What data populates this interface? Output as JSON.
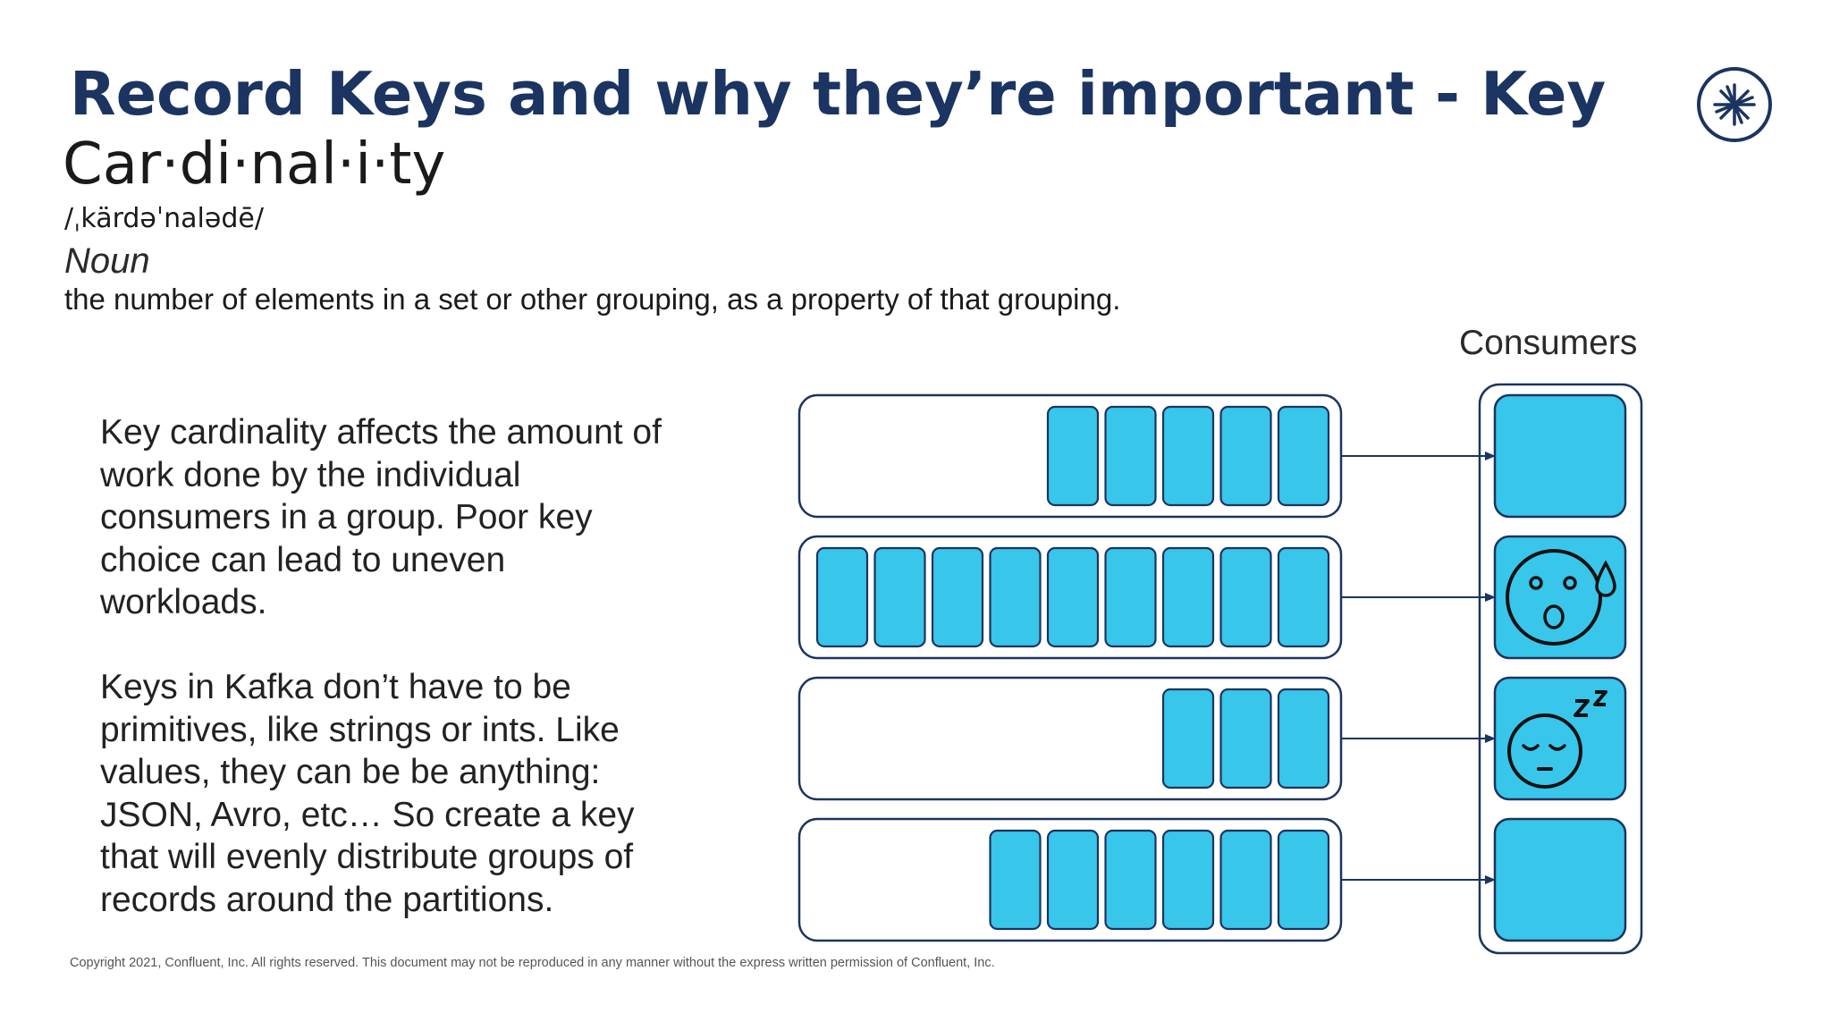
{
  "slide": {
    "title": "Record Keys and why they’re important - Key",
    "term": "Car·di·nal·i·ty",
    "pronunciation": "/ˌkärdəˈnalədē/",
    "part_of_speech": "Noun",
    "definition": "the number of elements in a set or other grouping, as a property of that grouping.",
    "paragraph1": "Key cardinality affects the amount of work done by the individual consumers in a group. Poor key choice can lead to uneven workloads.",
    "paragraph2": "Keys in Kafka don’t have to be primitives, like strings or ints. Like values, they can be be anything: JSON, Avro, etc… So create a key that will evenly distribute groups of records around the partitions.",
    "copyright": "Copyright 2021, Confluent, Inc. All rights reserved. This document may not be reproduced in any manner without the express written permission of Confluent, Inc."
  },
  "diagram": {
    "consumers_label": "Consumers",
    "partitions": [
      {
        "records": 5,
        "consumer_state": "normal"
      },
      {
        "records": 9,
        "consumer_state": "overloaded"
      },
      {
        "records": 3,
        "consumer_state": "sleeping"
      },
      {
        "records": 6,
        "consumer_state": "normal"
      }
    ],
    "colors": {
      "record_fill": "#38c6ea",
      "stroke": "#1b3461",
      "consumer_fill": "#38c6ea",
      "title": "#1b3461"
    },
    "icons": {
      "overloaded": "sweating-face-icon",
      "sleeping": "sleeping-face-icon",
      "logo": "confluent-logo-icon"
    }
  }
}
